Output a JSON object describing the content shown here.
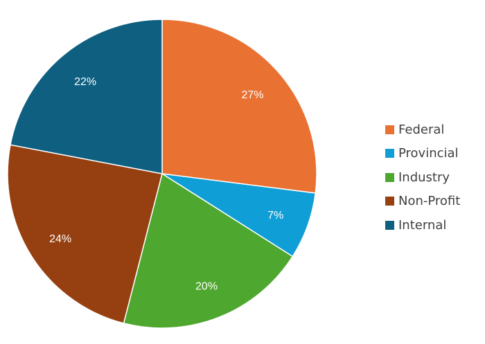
{
  "chart_data": {
    "type": "pie",
    "title": "",
    "categories": [
      "Federal",
      "Provincial",
      "Industry",
      "Non-Profit",
      "Internal"
    ],
    "values": [
      27,
      7,
      20,
      24,
      22
    ],
    "labels": [
      "27%",
      "7%",
      "20%",
      "24%",
      "22%"
    ],
    "colors": [
      "#E97132",
      "#0F9ED5",
      "#4EA72E",
      "#964012",
      "#0E5F80"
    ],
    "start_angle_deg": 0,
    "direction": "clockwise",
    "legend_position": "right"
  },
  "legend": {
    "items": [
      {
        "label": "Federal",
        "color": "#E97132"
      },
      {
        "label": "Provincial",
        "color": "#0F9ED5"
      },
      {
        "label": "Industry",
        "color": "#4EA72E"
      },
      {
        "label": "Non-Profit",
        "color": "#964012"
      },
      {
        "label": "Internal",
        "color": "#0E5F80"
      }
    ]
  }
}
